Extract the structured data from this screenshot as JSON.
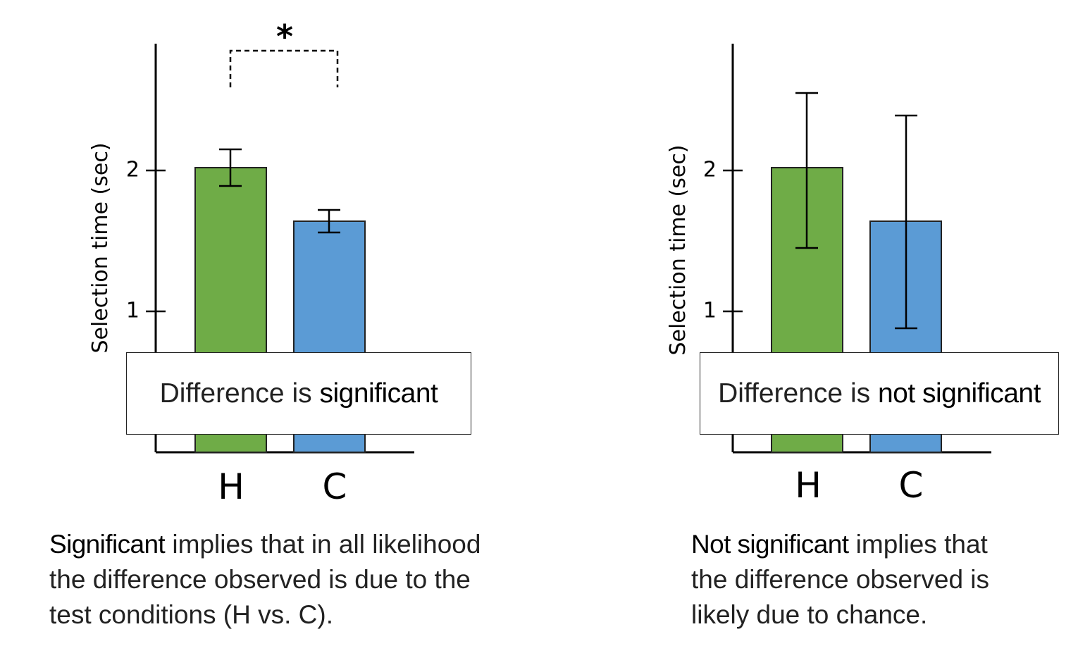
{
  "chart_data": [
    {
      "type": "bar",
      "categories": [
        "H",
        "C"
      ],
      "values": [
        2.02,
        1.64
      ],
      "error_upper": [
        2.15,
        1.72
      ],
      "error_lower": [
        1.89,
        1.56
      ],
      "colors": [
        "#6fac47",
        "#5b9bd5"
      ],
      "ylabel": "Selection time (sec)",
      "yticks": [
        "1",
        "2"
      ],
      "ylim": [
        0,
        2.9
      ],
      "grid": false,
      "significance_marker": "*",
      "overlay": {
        "prefix": "Difference is ",
        "emphasis": "significant"
      },
      "caption": {
        "lead": "Significant",
        "lines": [
          " implies that in all likelihood",
          "the difference observed is due to the",
          "test conditions (H vs. C)."
        ]
      }
    },
    {
      "type": "bar",
      "categories": [
        "H",
        "C"
      ],
      "values": [
        2.02,
        1.64
      ],
      "error_upper": [
        2.55,
        2.39
      ],
      "error_lower": [
        1.45,
        0.88
      ],
      "colors": [
        "#6fac47",
        "#5b9bd5"
      ],
      "ylabel": "Selection time (sec)",
      "yticks": [
        "1",
        "2"
      ],
      "ylim": [
        0,
        2.9
      ],
      "grid": false,
      "significance_marker": "",
      "overlay": {
        "prefix": "Difference is ",
        "emphasis": "not significant"
      },
      "caption": {
        "lead": "Not significant",
        "lines": [
          " implies that",
          "the difference observed is",
          "likely due to chance."
        ]
      }
    }
  ]
}
